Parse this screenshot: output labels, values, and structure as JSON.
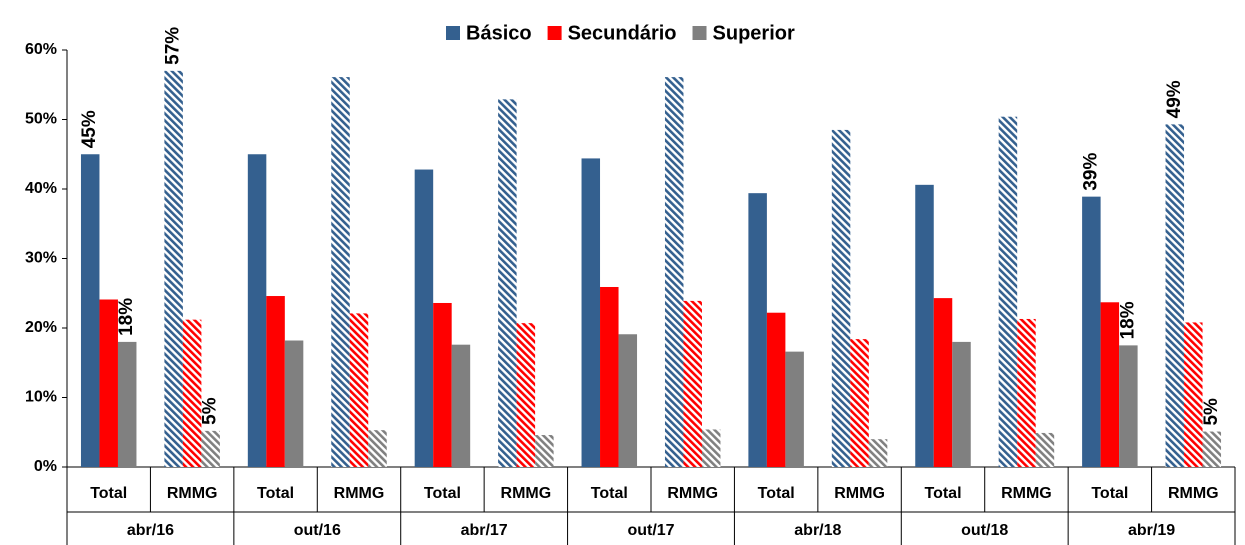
{
  "chart_data": {
    "type": "bar",
    "categories": [
      "Total",
      "RMMG",
      "Total",
      "RMMG",
      "Total",
      "RMMG",
      "Total",
      "RMMG",
      "Total",
      "RMMG",
      "Total",
      "RMMG",
      "Total",
      "RMMG"
    ],
    "groups": [
      "abr/16",
      "out/16",
      "abr/17",
      "out/17",
      "abr/18",
      "out/18",
      "abr/19"
    ],
    "hatched": "RMMG",
    "series": [
      {
        "name": "Básico",
        "color": "#34608f",
        "values": [
          45,
          57,
          45,
          56.1,
          42.8,
          52.9,
          44.4,
          56.1,
          39.4,
          48.5,
          40.6,
          50.4,
          38.9,
          49.3
        ],
        "value_labels": [
          "45%",
          "57%",
          null,
          null,
          null,
          null,
          null,
          null,
          null,
          null,
          null,
          null,
          "39%",
          "49%"
        ]
      },
      {
        "name": "Secundário",
        "color": "#ff0000",
        "values": [
          24.1,
          21.2,
          24.6,
          22.1,
          23.6,
          20.7,
          25.9,
          23.9,
          22.2,
          18.4,
          24.3,
          21.3,
          23.7,
          20.8
        ],
        "value_labels": [
          null,
          null,
          null,
          null,
          null,
          null,
          null,
          null,
          null,
          null,
          null,
          null,
          null,
          null
        ]
      },
      {
        "name": "Superior",
        "color": "#808080",
        "values": [
          18,
          5.2,
          18.2,
          5.3,
          17.6,
          4.6,
          19.1,
          5.4,
          16.6,
          4,
          18,
          4.9,
          17.5,
          5.1
        ],
        "value_labels": [
          "18%",
          "5%",
          null,
          null,
          null,
          null,
          null,
          null,
          null,
          null,
          null,
          null,
          "18%",
          "5%"
        ]
      }
    ],
    "ylim": [
      0,
      60
    ],
    "yticks": [
      {
        "value": 0,
        "label": "0%"
      },
      {
        "value": 10,
        "label": "10%"
      },
      {
        "value": 20,
        "label": "20%"
      },
      {
        "value": 30,
        "label": "30%"
      },
      {
        "value": 40,
        "label": "40%"
      },
      {
        "value": 50,
        "label": "50%"
      },
      {
        "value": 60,
        "label": "60%"
      }
    ],
    "legend": "top"
  }
}
